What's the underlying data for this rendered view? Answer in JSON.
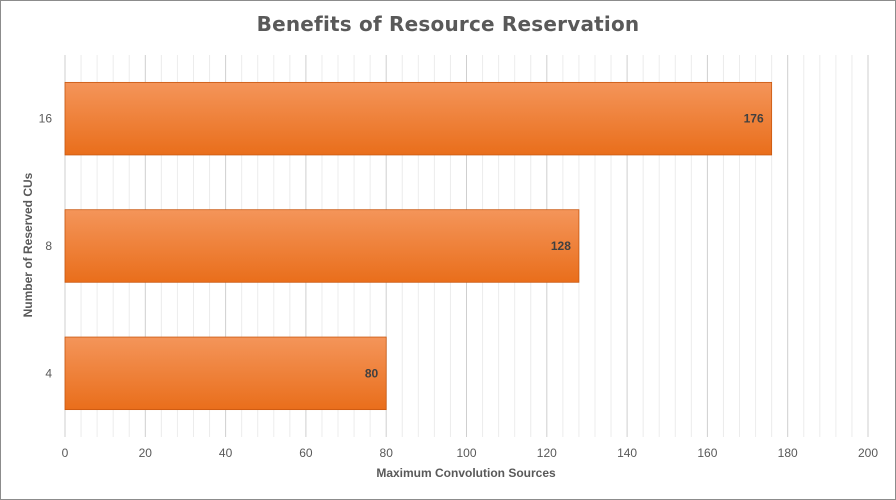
{
  "chart_data": {
    "type": "bar",
    "orientation": "horizontal",
    "title": "Benefits  of Resource  Reservation",
    "xlabel": "Maximum Convolution Sources",
    "ylabel": "Number of Reserved CUs",
    "categories": [
      "16",
      "8",
      "4"
    ],
    "values": [
      176,
      128,
      80
    ],
    "data_labels": [
      "176",
      "128",
      "80"
    ],
    "xlim": [
      0,
      200
    ],
    "x_ticks": [
      "0",
      "20",
      "40",
      "60",
      "80",
      "100",
      "120",
      "140",
      "160",
      "180",
      "200"
    ],
    "grid": "vertical",
    "legend": "none",
    "colors": {
      "bar_top": "#f4955a",
      "bar_bottom": "#e96e1b",
      "bar_border": "#c9570f",
      "gridline": "#d9d9d9"
    }
  }
}
